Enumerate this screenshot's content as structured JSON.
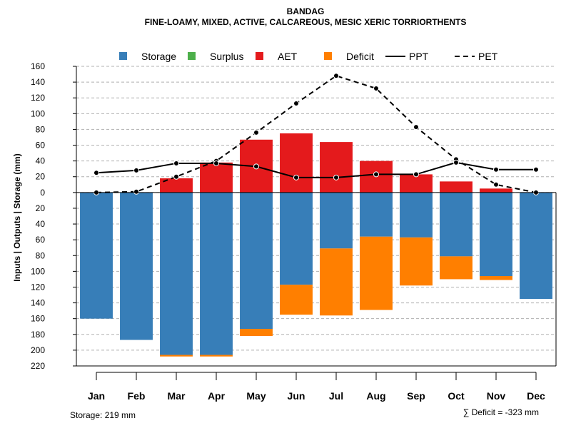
{
  "chart_data": {
    "type": "bar",
    "title": "BANDAG",
    "subtitle": "FINE-LOAMY, MIXED, ACTIVE, CALCAREOUS, MESIC XERIC TORRIORTHENTS",
    "ylabel": "Inputs | Outputs | Storage     (mm)",
    "ylim": [
      -220,
      160
    ],
    "y_ticks": [
      160,
      140,
      120,
      100,
      80,
      60,
      40,
      20,
      0,
      -20,
      -40,
      -60,
      -80,
      -100,
      -120,
      -140,
      -160,
      -180,
      -200,
      -220
    ],
    "y_tick_labels": [
      "160",
      "140",
      "120",
      "100",
      "80",
      "60",
      "40",
      "20",
      "0",
      "20",
      "40",
      "60",
      "80",
      "100",
      "120",
      "140",
      "160",
      "180",
      "200",
      "220"
    ],
    "categories": [
      "Jan",
      "Feb",
      "Mar",
      "Apr",
      "May",
      "Jun",
      "Jul",
      "Aug",
      "Sep",
      "Oct",
      "Nov",
      "Dec"
    ],
    "series": [
      {
        "name": "Storage",
        "color": "#377EB8",
        "values": [
          -160,
          -187,
          -206,
          -206,
          -173,
          -117,
          -71,
          -56,
          -57,
          -81,
          -106,
          -135
        ]
      },
      {
        "name": "Surplus",
        "color": "#4DAF4A",
        "values": [
          0,
          0,
          0,
          0,
          0,
          0,
          0,
          0,
          0,
          0,
          0,
          0
        ]
      },
      {
        "name": "AET",
        "color": "#E41A1C",
        "values": [
          0,
          0,
          18,
          38,
          67,
          75,
          64,
          40,
          23,
          14,
          5,
          0
        ]
      },
      {
        "name": "Deficit",
        "color": "#FF7F00",
        "values": [
          0,
          0,
          -2,
          -2,
          -9,
          -38,
          -85,
          -93,
          -61,
          -29,
          -5,
          0
        ]
      },
      {
        "name": "PPT",
        "color": "#000000",
        "style": "solid",
        "values": [
          25,
          28,
          37,
          37,
          33,
          19,
          19,
          23,
          23,
          38,
          29,
          29
        ]
      },
      {
        "name": "PET",
        "color": "#000000",
        "style": "dashed",
        "values": [
          0,
          1,
          20,
          40,
          76,
          113,
          148,
          132,
          83,
          42,
          10,
          0
        ]
      }
    ],
    "legend": [
      "Storage",
      "Surplus",
      "AET",
      "Deficit",
      "PPT",
      "PET"
    ],
    "legend_position": "top",
    "grid": true,
    "footer_left": "Storage: 219 mm",
    "footer_right": "∑ Deficit = -323 mm"
  }
}
